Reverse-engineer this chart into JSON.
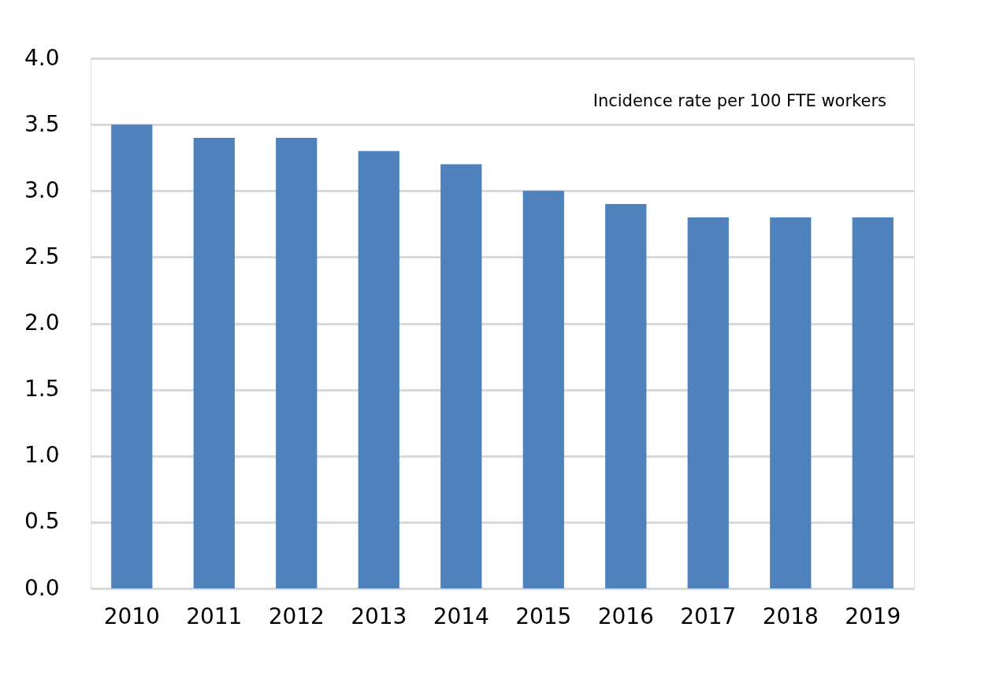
{
  "chart_data": {
    "type": "bar",
    "categories": [
      "2010",
      "2011",
      "2012",
      "2013",
      "2014",
      "2015",
      "2016",
      "2017",
      "2018",
      "2019"
    ],
    "values": [
      3.5,
      3.4,
      3.4,
      3.3,
      3.2,
      3.0,
      2.9,
      2.8,
      2.8,
      2.8
    ],
    "color": "#4f81bd",
    "ylim": [
      0,
      4.0
    ],
    "yticks": [
      {
        "value": 0,
        "label": "0.0"
      },
      {
        "value": 0.5,
        "label": "0.5"
      },
      {
        "value": 1.0,
        "label": "1.0"
      },
      {
        "value": 1.5,
        "label": "1.5"
      },
      {
        "value": 2.0,
        "label": "2.0"
      },
      {
        "value": 2.5,
        "label": "2.5"
      },
      {
        "value": 3.0,
        "label": "3.0"
      },
      {
        "value": 3.5,
        "label": "3.5"
      },
      {
        "value": 4.0,
        "label": "4.0"
      }
    ],
    "grid": "y",
    "annotations": [
      "Incidence rate per 100 FTE workers"
    ]
  }
}
